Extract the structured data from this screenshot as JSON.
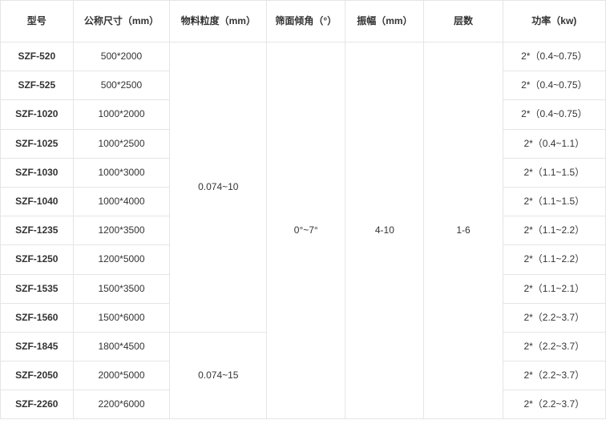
{
  "headers": {
    "model": "型号",
    "size": "公称尺寸（mm）",
    "granularity": "物料粒度（mm）",
    "angle": "筛面倾角（°）",
    "amplitude": "振幅（mm）",
    "layers": "层数",
    "power": "功率（kw)"
  },
  "shared": {
    "granularity1": "0.074~10",
    "granularity2": "0.074~15",
    "angle": "0°~7°",
    "amplitude": "4-10",
    "layers": "1-6"
  },
  "rows": [
    {
      "model": "SZF-520",
      "size": "500*2000",
      "power": "2*（0.4~0.75）"
    },
    {
      "model": "SZF-525",
      "size": "500*2500",
      "power": "2*（0.4~0.75）"
    },
    {
      "model": "SZF-1020",
      "size": "1000*2000",
      "power": "2*（0.4~0.75）"
    },
    {
      "model": "SZF-1025",
      "size": "1000*2500",
      "power": "2*（0.4~1.1）"
    },
    {
      "model": "SZF-1030",
      "size": "1000*3000",
      "power": "2*（1.1~1.5）"
    },
    {
      "model": "SZF-1040",
      "size": "1000*4000",
      "power": "2*（1.1~1.5）"
    },
    {
      "model": "SZF-1235",
      "size": "1200*3500",
      "power": "2*（1.1~2.2）"
    },
    {
      "model": "SZF-1250",
      "size": "1200*5000",
      "power": "2*（1.1~2.2）"
    },
    {
      "model": "SZF-1535",
      "size": "1500*3500",
      "power": "2*（1.1~2.1）"
    },
    {
      "model": "SZF-1560",
      "size": "1500*6000",
      "power": "2*（2.2~3.7）"
    },
    {
      "model": "SZF-1845",
      "size": "1800*4500",
      "power": "2*（2.2~3.7）"
    },
    {
      "model": "SZF-2050",
      "size": "2000*5000",
      "power": "2*（2.2~3.7）"
    },
    {
      "model": "SZF-2260",
      "size": "2200*6000",
      "power": "2*（2.2~3.7）"
    }
  ]
}
